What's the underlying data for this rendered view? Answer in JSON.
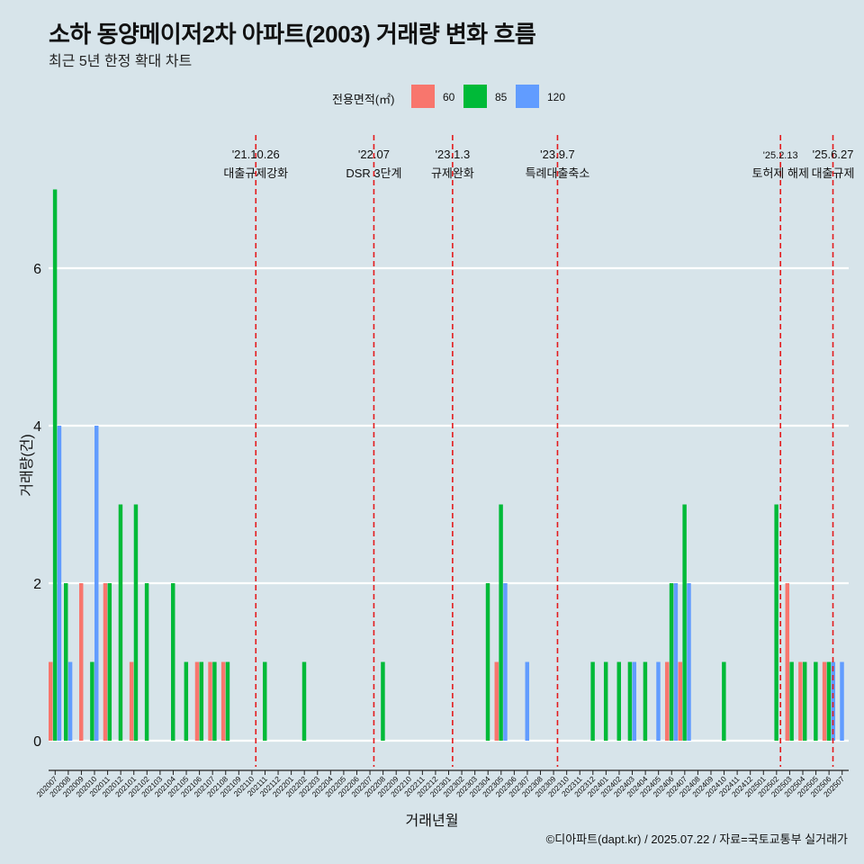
{
  "title": "소하 동양메이저2차 아파트(2003) 거래량 변화 흐름",
  "subtitle": "최근 5년 한정 확대 차트",
  "caption": "©디아파트(dapt.kr) / 2025.07.22 / 자료=국토교통부 실거래가",
  "colors": {
    "60": "#f8766d",
    "85": "#00ba38",
    "120": "#619cff",
    "event_line": "#e41a1c",
    "grid": "#ffffff",
    "background": "#d7e4ea"
  },
  "chart_data": {
    "type": "bar",
    "title": "소하 동양메이저2차 아파트(2003) 거래량 변화 흐름",
    "subtitle": "최근 5년 한정 확대 차트",
    "xlabel": "거래년월",
    "ylabel": "거래량(건)",
    "ylim": [
      0,
      7
    ],
    "yticks": [
      0,
      2,
      4,
      6
    ],
    "grid": true,
    "legend": {
      "title": "전용면적(㎡)",
      "position": "top",
      "entries": [
        "60",
        "85",
        "120"
      ]
    },
    "categories": [
      "202007",
      "202008",
      "202009",
      "202010",
      "202011",
      "202012",
      "202101",
      "202102",
      "202103",
      "202104",
      "202105",
      "202106",
      "202107",
      "202108",
      "202109",
      "202110",
      "202111",
      "202112",
      "202201",
      "202202",
      "202203",
      "202204",
      "202205",
      "202206",
      "202207",
      "202208",
      "202209",
      "202210",
      "202211",
      "202212",
      "202301",
      "202302",
      "202303",
      "202304",
      "202305",
      "202306",
      "202307",
      "202308",
      "202309",
      "202310",
      "202311",
      "202312",
      "202401",
      "202402",
      "202403",
      "202404",
      "202405",
      "202406",
      "202407",
      "202408",
      "202409",
      "202410",
      "202411",
      "202412",
      "202501",
      "202502",
      "202503",
      "202504",
      "202505",
      "202506",
      "202507"
    ],
    "series": [
      {
        "name": "60",
        "values": [
          1,
          0,
          2,
          0,
          2,
          0,
          1,
          0,
          0,
          0,
          0,
          1,
          1,
          1,
          0,
          0,
          0,
          0,
          0,
          0,
          0,
          0,
          0,
          0,
          0,
          0,
          0,
          0,
          0,
          0,
          0,
          0,
          0,
          0,
          1,
          0,
          0,
          0,
          0,
          0,
          0,
          0,
          0,
          0,
          0,
          0,
          0,
          1,
          1,
          0,
          0,
          0,
          0,
          0,
          0,
          0,
          2,
          1,
          0,
          1,
          0
        ]
      },
      {
        "name": "85",
        "values": [
          7,
          2,
          0,
          1,
          2,
          3,
          3,
          2,
          0,
          2,
          1,
          1,
          1,
          1,
          0,
          0,
          1,
          0,
          0,
          1,
          0,
          0,
          0,
          0,
          0,
          1,
          0,
          0,
          0,
          0,
          0,
          0,
          0,
          2,
          3,
          0,
          0,
          0,
          0,
          0,
          0,
          1,
          1,
          1,
          1,
          1,
          0,
          2,
          3,
          0,
          0,
          1,
          0,
          0,
          0,
          3,
          1,
          1,
          1,
          1,
          0
        ]
      },
      {
        "name": "120",
        "values": [
          4,
          1,
          0,
          4,
          0,
          0,
          0,
          0,
          0,
          0,
          0,
          0,
          0,
          0,
          0,
          0,
          0,
          0,
          0,
          0,
          0,
          0,
          0,
          0,
          0,
          0,
          0,
          0,
          0,
          0,
          0,
          0,
          0,
          0,
          2,
          0,
          1,
          0,
          0,
          0,
          0,
          0,
          0,
          0,
          1,
          0,
          1,
          2,
          2,
          0,
          0,
          0,
          0,
          0,
          0,
          0,
          0,
          0,
          0,
          1,
          1
        ]
      }
    ],
    "events": [
      {
        "date": "'21.10.26",
        "label": "대출규제강화",
        "index": 15.3
      },
      {
        "date": "'22.07",
        "label": "DSR 3단계",
        "index": 24.3
      },
      {
        "date": "'23.1.3",
        "label": "규제완화",
        "index": 30.3
      },
      {
        "date": "'23.9.7",
        "label": "특례대출축소",
        "index": 38.3
      },
      {
        "date": "'25.2.13",
        "label": "토허제 해제",
        "index": 55.3
      },
      {
        "date": "'25.6.27",
        "label": "대출규제",
        "index": 59.3
      }
    ]
  }
}
